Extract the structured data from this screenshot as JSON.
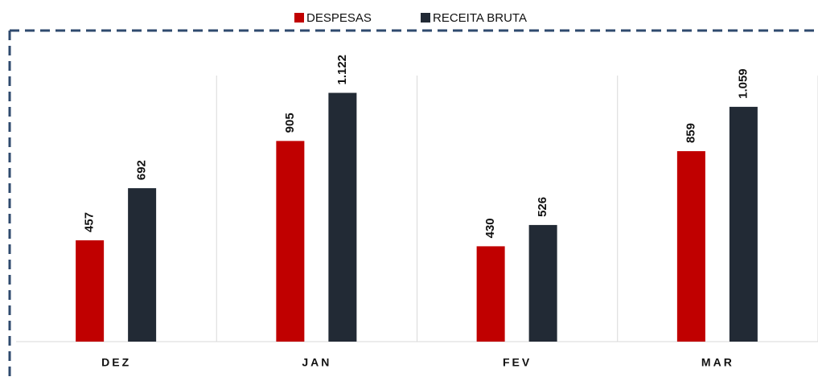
{
  "chart_data": {
    "type": "bar",
    "categories": [
      "DEZ",
      "JAN",
      "FEV",
      "MAR"
    ],
    "series": [
      {
        "name": "DESPESAS",
        "color": "#c00000",
        "values": [
          457,
          905,
          430,
          859
        ]
      },
      {
        "name": "RECEITA BRUTA",
        "color": "#222a35",
        "values": [
          692,
          1122,
          526,
          1059
        ],
        "value_labels": [
          "692",
          "1.122",
          "526",
          "1.059"
        ]
      }
    ],
    "ylim": [
      0,
      1200
    ],
    "legend": "top"
  }
}
